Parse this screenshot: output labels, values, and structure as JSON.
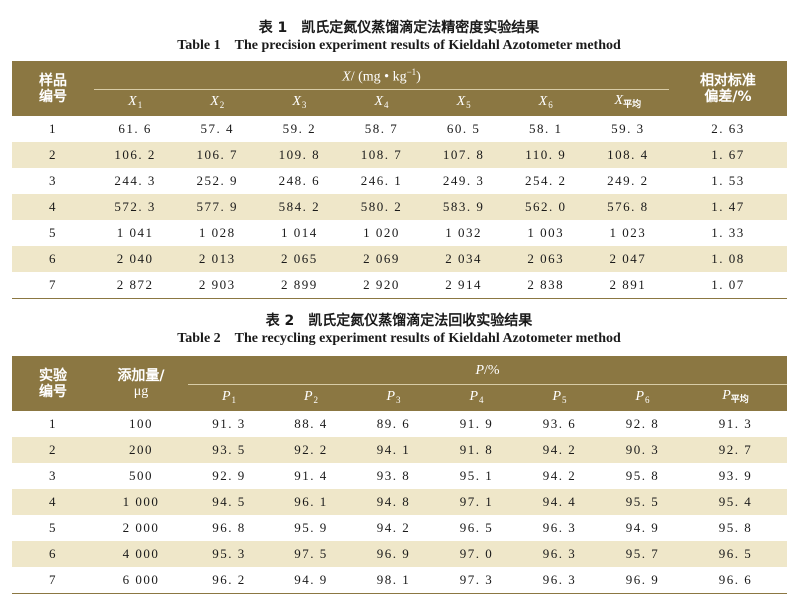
{
  "table1": {
    "caption_cn": "表 1　凯氏定氮仪蒸馏滴定法精密度实验结果",
    "caption_en": "Table 1　The precision experiment results of Kieldahl Azotometer method",
    "head_sample_l1": "样品",
    "head_sample_l2": "编号",
    "head_x_symbol": "X",
    "head_x_unit": "/ (mg • kg",
    "head_x_unit_exp": "−1",
    "head_x_unit_end": ")",
    "head_rsd_l1": "相对标准",
    "head_rsd_l2": "偏差/%",
    "subcols": [
      {
        "sym": "X",
        "sub": "1"
      },
      {
        "sym": "X",
        "sub": "2"
      },
      {
        "sym": "X",
        "sub": "3"
      },
      {
        "sym": "X",
        "sub": "4"
      },
      {
        "sym": "X",
        "sub": "5"
      },
      {
        "sym": "X",
        "sub": "6"
      },
      {
        "sym": "X",
        "sub": "平均"
      }
    ],
    "rows": [
      [
        "1",
        "61. 6",
        "57. 4",
        "59. 2",
        "58. 7",
        "60. 5",
        "58. 1",
        "59. 3",
        "2. 63"
      ],
      [
        "2",
        "106. 2",
        "106. 7",
        "109. 8",
        "108. 7",
        "107. 8",
        "110. 9",
        "108. 4",
        "1. 67"
      ],
      [
        "3",
        "244. 3",
        "252. 9",
        "248. 6",
        "246. 1",
        "249. 3",
        "254. 2",
        "249. 2",
        "1. 53"
      ],
      [
        "4",
        "572. 3",
        "577. 9",
        "584. 2",
        "580. 2",
        "583. 9",
        "562. 0",
        "576. 8",
        "1. 47"
      ],
      [
        "5",
        "1 041",
        "1 028",
        "1 014",
        "1 020",
        "1 032",
        "1 003",
        "1 023",
        "1. 33"
      ],
      [
        "6",
        "2 040",
        "2 013",
        "2 065",
        "2 069",
        "2 034",
        "2 063",
        "2 047",
        "1. 08"
      ],
      [
        "7",
        "2 872",
        "2 903",
        "2 899",
        "2 920",
        "2 914",
        "2 838",
        "2 891",
        "1. 07"
      ]
    ]
  },
  "table2": {
    "caption_cn": "表 2　凯氏定氮仪蒸馏滴定法回收实验结果",
    "caption_en": "Table 2　The recycling experiment results of Kieldahl Azotometer method",
    "head_exp_l1": "实验",
    "head_exp_l2": "编号",
    "head_add_l1": "添加量/",
    "head_add_l2": "μg",
    "head_p_symbol": "P",
    "head_p_unit": "/%",
    "subcols": [
      {
        "sym": "P",
        "sub": "1"
      },
      {
        "sym": "P",
        "sub": "2"
      },
      {
        "sym": "P",
        "sub": "3"
      },
      {
        "sym": "P",
        "sub": "4"
      },
      {
        "sym": "P",
        "sub": "5"
      },
      {
        "sym": "P",
        "sub": "6"
      },
      {
        "sym": "P",
        "sub": "平均"
      }
    ],
    "rows": [
      [
        "1",
        "100",
        "91. 3",
        "88. 4",
        "89. 6",
        "91. 9",
        "93. 6",
        "92. 8",
        "91. 3"
      ],
      [
        "2",
        "200",
        "93. 5",
        "92. 2",
        "94. 1",
        "91. 8",
        "94. 2",
        "90. 3",
        "92. 7"
      ],
      [
        "3",
        "500",
        "92. 9",
        "91. 4",
        "93. 8",
        "95. 1",
        "94. 2",
        "95. 8",
        "93. 9"
      ],
      [
        "4",
        "1 000",
        "94. 5",
        "96. 1",
        "94. 8",
        "97. 1",
        "94. 4",
        "95. 5",
        "95. 4"
      ],
      [
        "5",
        "2 000",
        "96. 8",
        "95. 9",
        "94. 2",
        "96. 5",
        "96. 3",
        "94. 9",
        "95. 8"
      ],
      [
        "6",
        "4 000",
        "95. 3",
        "97. 5",
        "96. 9",
        "97. 0",
        "96. 3",
        "95. 7",
        "96. 5"
      ],
      [
        "7",
        "6 000",
        "96. 2",
        "94. 9",
        "98. 1",
        "97. 3",
        "96. 3",
        "96. 9",
        "96. 6"
      ]
    ]
  },
  "colors": {
    "header_bg": "#8b7742",
    "row_shade": "#efe7c9",
    "header_text": "#ffffff"
  }
}
